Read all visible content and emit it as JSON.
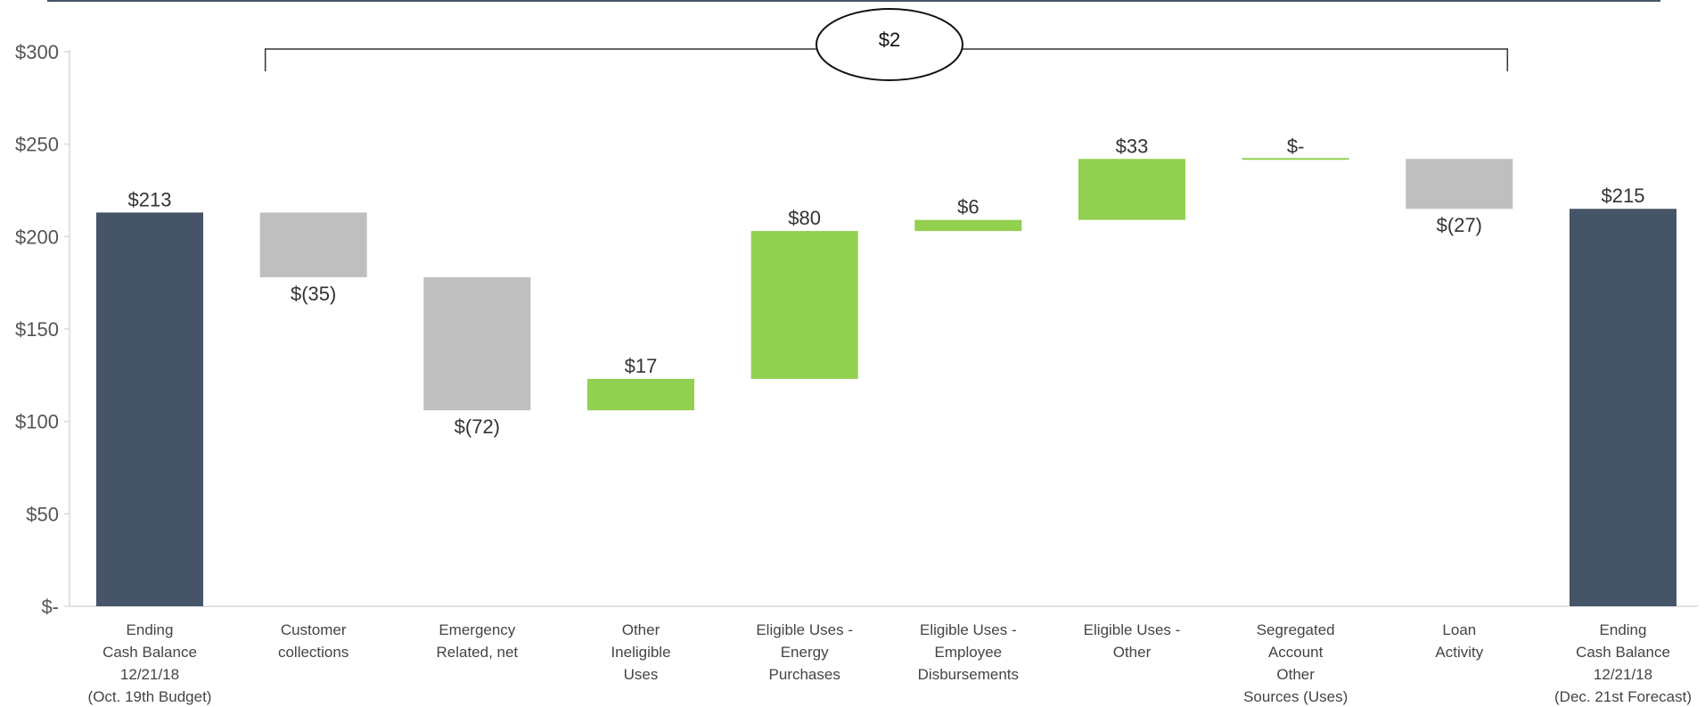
{
  "chart_data": {
    "type": "bar",
    "subtype": "waterfall",
    "ylim": [
      0,
      300
    ],
    "y_ticks": [
      {
        "value": 0,
        "label": "$-"
      },
      {
        "value": 50,
        "label": "$50"
      },
      {
        "value": 100,
        "label": "$100"
      },
      {
        "value": 150,
        "label": "$150"
      },
      {
        "value": 200,
        "label": "$200"
      },
      {
        "value": 250,
        "label": "$250"
      },
      {
        "value": 300,
        "label": "$300"
      }
    ],
    "grid": false,
    "bars": [
      {
        "category": [
          "Ending",
          "Cash Balance",
          "12/21/18",
          "(Oct. 19th Budget)"
        ],
        "kind": "total",
        "start": 0,
        "end": 213,
        "label": "$213"
      },
      {
        "category": [
          "Customer",
          "collections"
        ],
        "kind": "decrease",
        "start": 213,
        "end": 178,
        "label": "$(35)"
      },
      {
        "category": [
          "Emergency",
          "Related, net"
        ],
        "kind": "decrease",
        "start": 178,
        "end": 106,
        "label": "$(72)"
      },
      {
        "category": [
          "Other",
          "Ineligible",
          "Uses"
        ],
        "kind": "increase",
        "start": 106,
        "end": 123,
        "label": "$17"
      },
      {
        "category": [
          "Eligible Uses -",
          "Energy",
          "Purchases"
        ],
        "kind": "increase",
        "start": 123,
        "end": 203,
        "label": "$80"
      },
      {
        "category": [
          "Eligible Uses -",
          "Employee",
          "Disbursements"
        ],
        "kind": "increase",
        "start": 203,
        "end": 209,
        "label": "$6"
      },
      {
        "category": [
          "Eligible Uses -",
          "Other"
        ],
        "kind": "increase",
        "start": 209,
        "end": 242,
        "label": "$33"
      },
      {
        "category": [
          "Segregated",
          "Account",
          "Other",
          "Sources (Uses)"
        ],
        "kind": "increase",
        "start": 242,
        "end": 242,
        "label": "$-"
      },
      {
        "category": [
          "Loan",
          "Activity"
        ],
        "kind": "decrease",
        "start": 242,
        "end": 215,
        "label": "$(27)"
      },
      {
        "category": [
          "Ending",
          "Cash Balance",
          "12/21/18",
          "(Dec. 21st Forecast)"
        ],
        "kind": "total",
        "start": 0,
        "end": 215,
        "label": "$215"
      }
    ],
    "annotation": {
      "text": "$2",
      "from_bar": 1,
      "to_bar": 8
    },
    "colors": {
      "total": "#465467",
      "decrease": "#bfbfbf",
      "increase": "#92d050",
      "top_rule": "#465467"
    }
  }
}
